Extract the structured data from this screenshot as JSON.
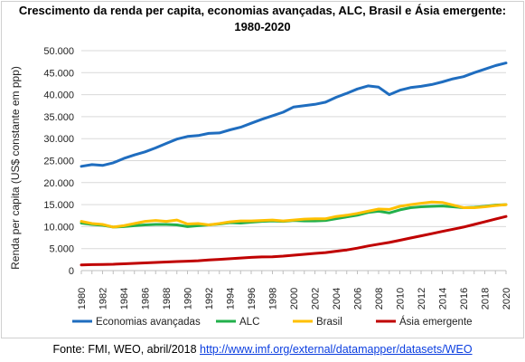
{
  "title_line1": "Crescimento da renda per capita, economias avançadas, ALC, Brasil e Ásia emergente:",
  "title_line2": "1980-2020",
  "source": {
    "prefix": "Fonte: FMI, WEO, abril/2018 ",
    "link_text": "http://www.imf.org/external/datamapper/datasets/WEO"
  },
  "chart_data": {
    "type": "line",
    "title": "Crescimento da renda per capita, economias avançadas, ALC, Brasil e Ásia emergente: 1980-2020",
    "xlabel": "",
    "ylabel": "Renda per capita (US$ constante em ppp)",
    "ylim": [
      0,
      50000
    ],
    "y_ticks": [
      0,
      5000,
      10000,
      15000,
      20000,
      25000,
      30000,
      35000,
      40000,
      45000,
      50000
    ],
    "y_tick_labels": [
      "0",
      "5.000",
      "10.000",
      "15.000",
      "20.000",
      "25.000",
      "30.000",
      "35.000",
      "40.000",
      "45.000",
      "50.000"
    ],
    "x_tick_labels": [
      "1980",
      "1982",
      "1984",
      "1986",
      "1988",
      "1990",
      "1992",
      "1994",
      "1996",
      "1998",
      "2000",
      "2002",
      "2004",
      "2006",
      "2008",
      "2010",
      "2012",
      "2014",
      "2016",
      "2018",
      "2020"
    ],
    "grid": true,
    "legend_position": "bottom",
    "x": [
      1980,
      1981,
      1982,
      1983,
      1984,
      1985,
      1986,
      1987,
      1988,
      1989,
      1990,
      1991,
      1992,
      1993,
      1994,
      1995,
      1996,
      1997,
      1998,
      1999,
      2000,
      2001,
      2002,
      2003,
      2004,
      2005,
      2006,
      2007,
      2008,
      2009,
      2010,
      2011,
      2012,
      2013,
      2014,
      2015,
      2016,
      2017,
      2018,
      2019,
      2020
    ],
    "series": [
      {
        "name": "Economias avançadas",
        "color": "#1f6dbf",
        "values": [
          23700,
          24100,
          23900,
          24500,
          25500,
          26300,
          27000,
          27900,
          28900,
          29900,
          30500,
          30700,
          31200,
          31300,
          32000,
          32600,
          33500,
          34400,
          35200,
          36000,
          37200,
          37500,
          37800,
          38300,
          39400,
          40300,
          41300,
          42000,
          41700,
          40000,
          41000,
          41600,
          41900,
          42300,
          42900,
          43600,
          44100,
          45000,
          45800,
          46600,
          47200
        ]
      },
      {
        "name": "ALC",
        "color": "#22b04b",
        "values": [
          10800,
          10500,
          10300,
          9900,
          10000,
          10200,
          10400,
          10500,
          10500,
          10400,
          10000,
          10200,
          10400,
          10600,
          10900,
          10800,
          11000,
          11200,
          11300,
          11200,
          11400,
          11300,
          11300,
          11400,
          11800,
          12200,
          12600,
          13200,
          13500,
          13100,
          13800,
          14300,
          14500,
          14600,
          14700,
          14500,
          14300,
          14400,
          14600,
          14900,
          15000
        ]
      },
      {
        "name": "Brasil",
        "color": "#ffc000",
        "values": [
          11200,
          10700,
          10500,
          9900,
          10200,
          10700,
          11200,
          11400,
          11200,
          11500,
          10600,
          10700,
          10400,
          10700,
          11100,
          11300,
          11300,
          11400,
          11500,
          11300,
          11500,
          11700,
          11800,
          11800,
          12300,
          12600,
          13000,
          13500,
          14000,
          13900,
          14600,
          15000,
          15300,
          15600,
          15500,
          14900,
          14300,
          14300,
          14500,
          14800,
          15000
        ]
      },
      {
        "name": "Ásia emergente",
        "color": "#c00000",
        "values": [
          1300,
          1350,
          1400,
          1450,
          1550,
          1650,
          1750,
          1850,
          1950,
          2050,
          2150,
          2250,
          2400,
          2550,
          2700,
          2850,
          3000,
          3100,
          3150,
          3300,
          3500,
          3700,
          3900,
          4100,
          4400,
          4700,
          5100,
          5600,
          6000,
          6400,
          6900,
          7400,
          7900,
          8400,
          8900,
          9400,
          9900,
          10500,
          11100,
          11700,
          12300
        ]
      }
    ]
  }
}
